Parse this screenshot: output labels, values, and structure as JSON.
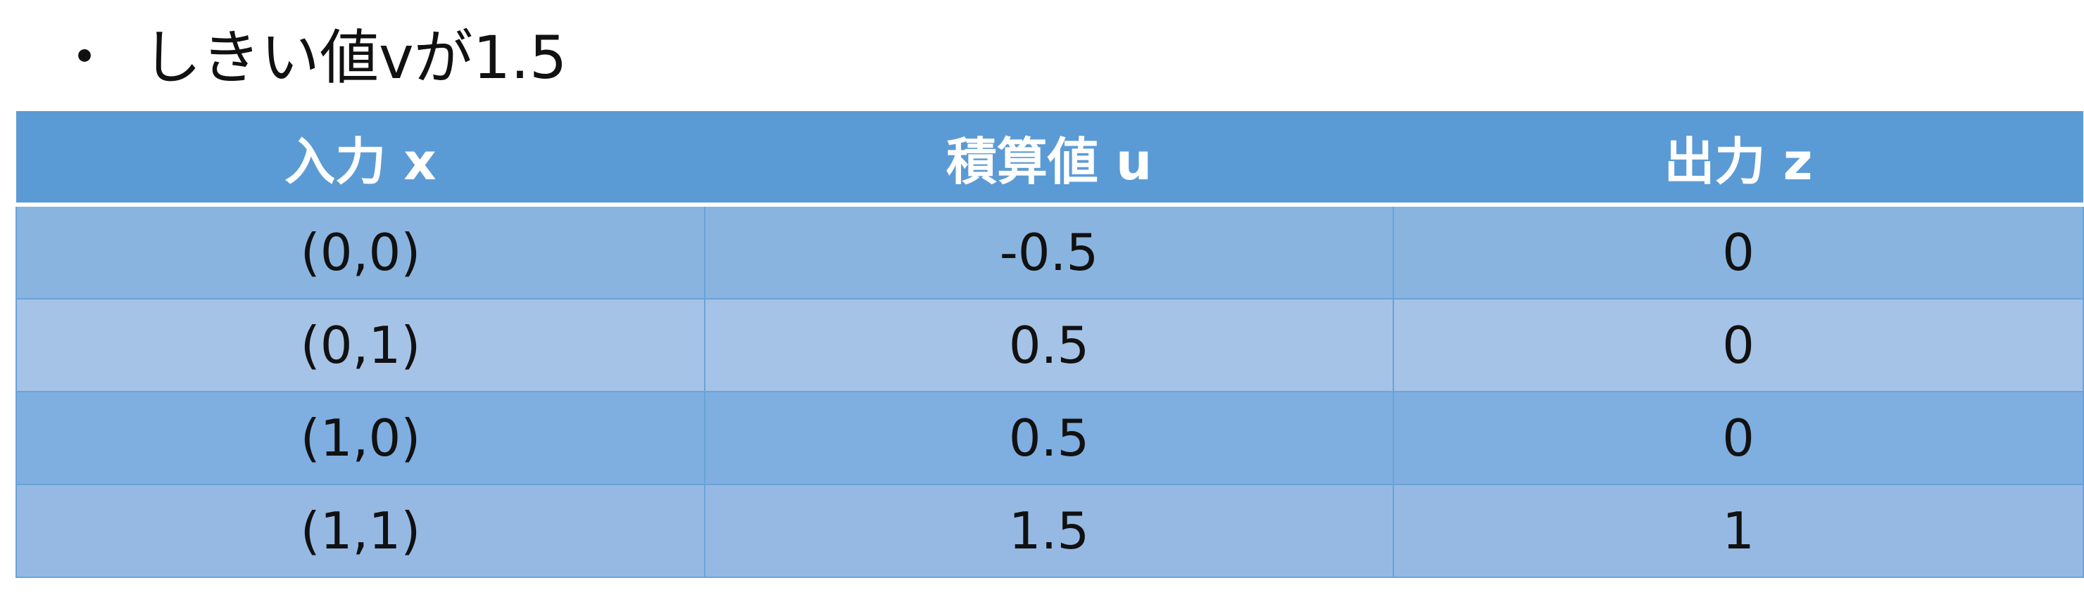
{
  "title": {
    "bullet": "・",
    "text": "しきい値vが1.5"
  },
  "table": {
    "headers": [
      "入力 x",
      "積算値 u",
      "出力 z"
    ],
    "rows": [
      [
        "(0,0)",
        "-0.5",
        "0"
      ],
      [
        "(0,1)",
        "0.5",
        "0"
      ],
      [
        "(1,0)",
        "0.5",
        "0"
      ],
      [
        "(1,1)",
        "1.5",
        "1"
      ]
    ]
  },
  "colors": {
    "header_bg": "#5b9bd5",
    "row_a": "#89b4e0",
    "row_b": "#a5c3e6",
    "header_text": "#ffffff"
  }
}
